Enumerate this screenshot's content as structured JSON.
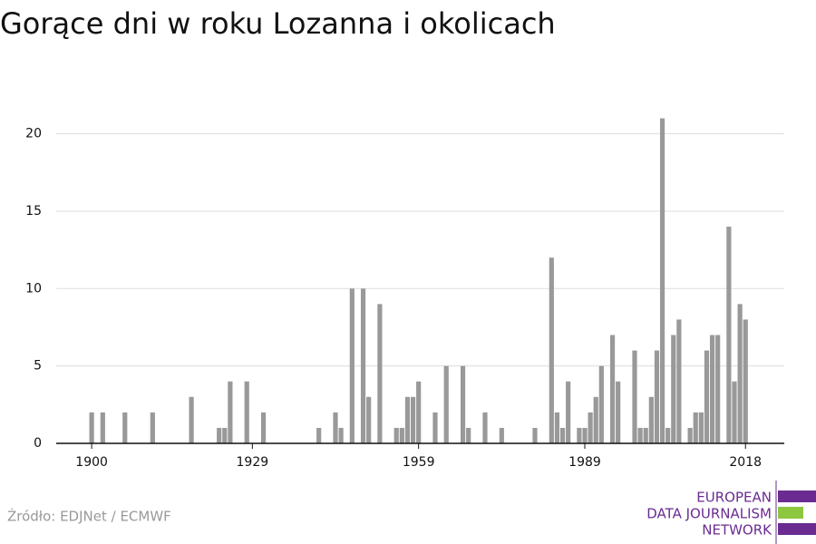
{
  "chart_data": {
    "type": "bar",
    "title": "Gorące dni w roku Lozanna i okolicach",
    "x": [
      1900,
      1902,
      1906,
      1911,
      1918,
      1923,
      1924,
      1925,
      1928,
      1931,
      1941,
      1944,
      1945,
      1947,
      1949,
      1950,
      1952,
      1955,
      1956,
      1957,
      1958,
      1959,
      1962,
      1964,
      1967,
      1968,
      1971,
      1974,
      1980,
      1983,
      1984,
      1985,
      1986,
      1988,
      1989,
      1990,
      1991,
      1992,
      1994,
      1995,
      1998,
      1999,
      2000,
      2001,
      2002,
      2003,
      2004,
      2005,
      2006,
      2008,
      2009,
      2010,
      2011,
      2012,
      2013,
      2015,
      2016,
      2017,
      2018
    ],
    "values": [
      2,
      2,
      2,
      2,
      3,
      1,
      1,
      4,
      4,
      2,
      1,
      2,
      1,
      10,
      10,
      3,
      9,
      1,
      1,
      3,
      3,
      4,
      2,
      5,
      5,
      1,
      2,
      1,
      1,
      12,
      2,
      1,
      4,
      1,
      1,
      2,
      3,
      5,
      7,
      4,
      6,
      1,
      1,
      3,
      6,
      21,
      1,
      7,
      8,
      1,
      2,
      2,
      6,
      7,
      7,
      14,
      4,
      9,
      8
    ],
    "color": "#999999",
    "xlim": [
      1893.6,
      2025
    ],
    "xticks": [
      1900,
      1929,
      1959,
      1989,
      2018
    ],
    "ylim": [
      0,
      21.5
    ],
    "yticks": [
      0,
      5,
      10,
      15,
      20
    ],
    "grid": true,
    "source": "Źródło: EDJNet / ECMWF",
    "logo": [
      "EUROPEAN",
      "DATA JOURNALISM",
      "NETWORK"
    ]
  }
}
